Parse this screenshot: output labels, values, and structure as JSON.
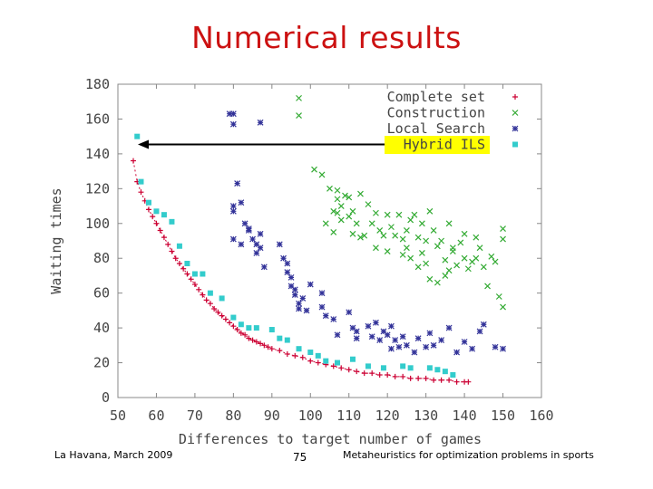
{
  "slide": {
    "title": "Numerical results",
    "footer_left": "La Havana, March 2009",
    "page_number": "75",
    "footer_right": "Metaheuristics for optimization problems in sports"
  },
  "chart_data": {
    "type": "scatter",
    "xlabel": "Differences to target number of games",
    "ylabel": "Waiting times",
    "xlim": [
      50,
      160
    ],
    "ylim": [
      0,
      180
    ],
    "xticks": [
      50,
      60,
      70,
      80,
      90,
      100,
      110,
      120,
      130,
      140,
      150,
      160
    ],
    "yticks": [
      0,
      20,
      40,
      60,
      80,
      100,
      120,
      140,
      160,
      180
    ],
    "grid": false,
    "legend_position": "top-right",
    "highlight": "Hybrid ILS",
    "highlight_color": "#ffff00",
    "series": [
      {
        "name": "Complete set",
        "marker": "+",
        "color": "#cc0033",
        "line": "dashed",
        "x": [
          54,
          55,
          56,
          57,
          58,
          59,
          60,
          61,
          62,
          63,
          64,
          65,
          66,
          67,
          68,
          69,
          70,
          71,
          72,
          73,
          74,
          75,
          76,
          77,
          78,
          79,
          80,
          81,
          82,
          83,
          84,
          85,
          86,
          87,
          88,
          89,
          90,
          92,
          94,
          96,
          98,
          100,
          102,
          104,
          106,
          108,
          110,
          112,
          114,
          116,
          118,
          120,
          122,
          124,
          126,
          128,
          130,
          132,
          134,
          136,
          138,
          140,
          141
        ],
        "y": [
          136,
          124,
          118,
          113,
          108,
          104,
          100,
          96,
          92,
          88,
          84,
          80,
          77,
          74,
          71,
          68,
          65,
          62,
          59,
          56,
          54,
          51,
          49,
          47,
          45,
          43,
          41,
          39,
          37,
          36,
          34,
          33,
          32,
          31,
          30,
          29,
          28,
          27,
          25,
          24,
          23,
          21,
          20,
          19,
          18,
          17,
          16,
          15,
          14,
          14,
          13,
          13,
          12,
          12,
          11,
          11,
          11,
          10,
          10,
          10,
          9,
          9,
          9
        ]
      },
      {
        "name": "Construction",
        "marker": "x",
        "color": "#33aa33",
        "x": [
          97,
          97,
          101,
          103,
          104,
          105,
          106,
          106,
          107,
          107,
          107,
          108,
          108,
          109,
          110,
          110,
          111,
          111,
          112,
          113,
          113,
          114,
          115,
          116,
          117,
          117,
          118,
          119,
          120,
          120,
          121,
          122,
          123,
          124,
          124,
          125,
          125,
          126,
          126,
          127,
          128,
          128,
          129,
          129,
          130,
          130,
          131,
          131,
          132,
          133,
          133,
          134,
          135,
          135,
          136,
          136,
          137,
          137,
          138,
          139,
          140,
          140,
          141,
          142,
          143,
          143,
          144,
          145,
          146,
          147,
          148,
          149,
          150,
          150,
          150
        ],
        "y": [
          172,
          162,
          131,
          128,
          100,
          120,
          107,
          95,
          119,
          114,
          106,
          110,
          102,
          116,
          115,
          104,
          107,
          94,
          100,
          117,
          92,
          93,
          111,
          100,
          106,
          86,
          96,
          93,
          105,
          84,
          98,
          93,
          105,
          91,
          82,
          96,
          86,
          102,
          80,
          105,
          92,
          75,
          100,
          83,
          90,
          77,
          107,
          68,
          96,
          87,
          66,
          90,
          79,
          70,
          100,
          73,
          86,
          84,
          76,
          89,
          94,
          80,
          74,
          78,
          92,
          80,
          86,
          75,
          64,
          81,
          78,
          58,
          52,
          91,
          97
        ]
      },
      {
        "name": "Local Search",
        "marker": "*",
        "color": "#333399",
        "x": [
          79,
          80,
          80,
          81,
          80,
          80,
          82,
          83,
          84,
          85,
          86,
          86,
          87,
          80,
          82,
          84,
          87,
          87,
          88,
          92,
          93,
          94,
          94,
          95,
          95,
          96,
          96,
          97,
          97,
          98,
          99,
          100,
          103,
          103,
          104,
          106,
          107,
          110,
          111,
          112,
          112,
          115,
          116,
          117,
          118,
          119,
          120,
          121,
          121,
          122,
          123,
          124,
          125,
          127,
          128,
          130,
          131,
          132,
          134,
          136,
          138,
          140,
          142,
          144,
          145,
          148,
          150
        ],
        "y": [
          163,
          157,
          163,
          123,
          110,
          107,
          112,
          100,
          96,
          91,
          88,
          83,
          158,
          91,
          88,
          97,
          94,
          86,
          75,
          88,
          80,
          77,
          72,
          69,
          64,
          62,
          59,
          54,
          51,
          57,
          50,
          65,
          60,
          52,
          47,
          45,
          36,
          49,
          40,
          38,
          34,
          41,
          35,
          43,
          33,
          38,
          36,
          41,
          28,
          33,
          29,
          35,
          30,
          26,
          34,
          29,
          37,
          30,
          33,
          40,
          26,
          32,
          28,
          38,
          42,
          29,
          28
        ]
      },
      {
        "name": "Hybrid ILS",
        "marker": "square",
        "color": "#33cccc",
        "x": [
          55,
          56,
          58,
          60,
          62,
          64,
          66,
          68,
          70,
          72,
          74,
          77,
          80,
          82,
          84,
          86,
          90,
          92,
          94,
          97,
          100,
          102,
          104,
          107,
          111,
          115,
          119,
          124,
          126,
          131,
          133,
          135,
          137
        ],
        "y": [
          150,
          124,
          112,
          107,
          105,
          101,
          87,
          77,
          71,
          71,
          60,
          57,
          46,
          42,
          40,
          40,
          39,
          34,
          33,
          28,
          26,
          24,
          21,
          20,
          22,
          18,
          17,
          18,
          17,
          17,
          16,
          15,
          13
        ]
      }
    ]
  }
}
